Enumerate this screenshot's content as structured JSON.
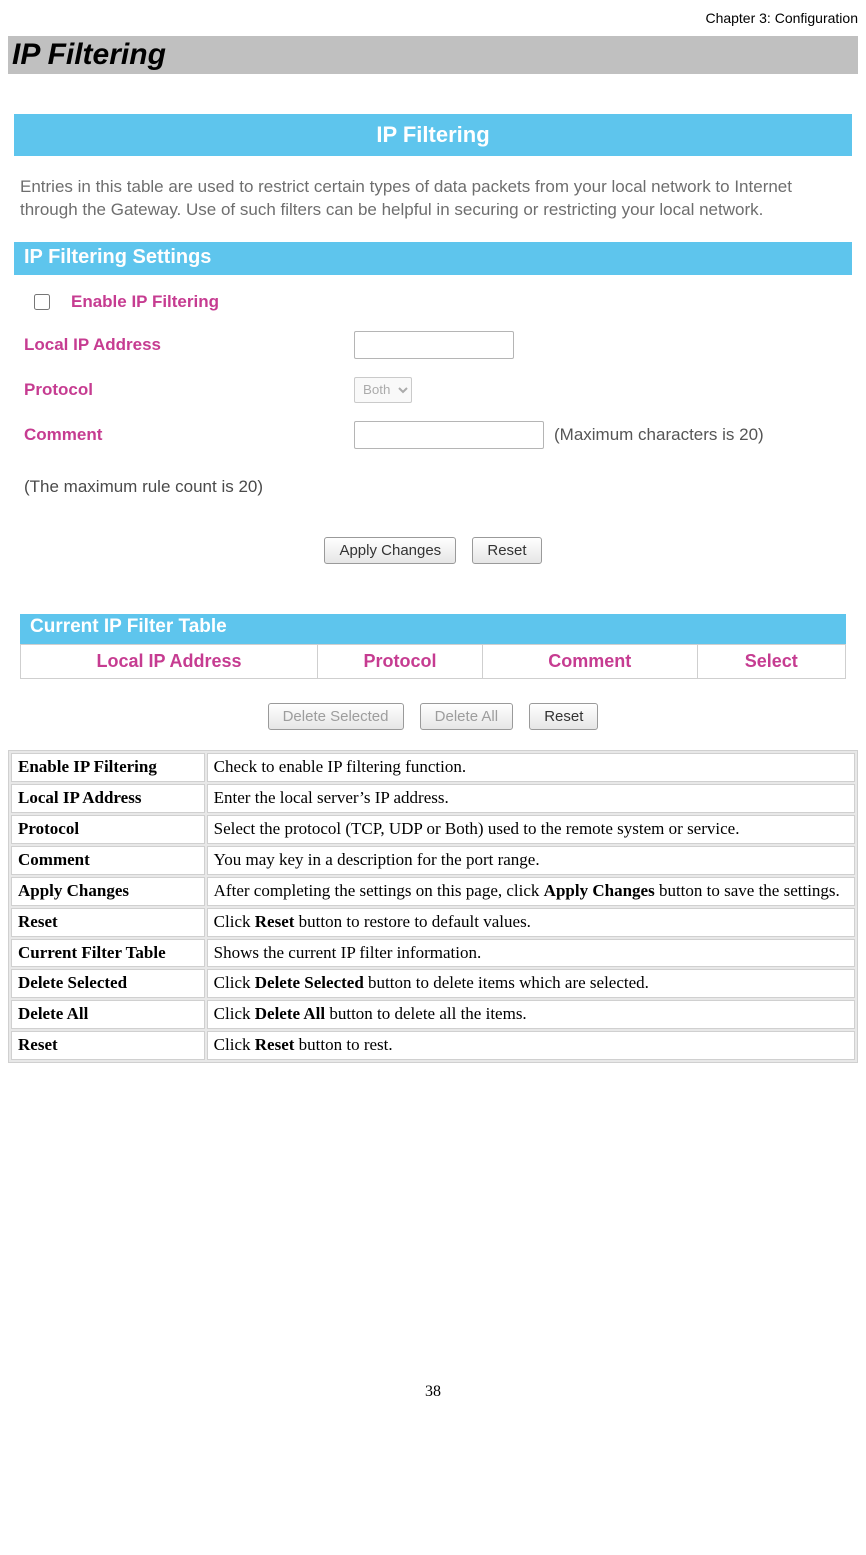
{
  "chapter_header": "Chapter 3: Configuration",
  "section_title": "IP Filtering",
  "router_ui": {
    "title": "IP Filtering",
    "description": "Entries in this table are used to restrict certain types of data packets from your local network to Internet through the Gateway. Use of such filters can be helpful in securing or restricting your local network.",
    "settings_header": "IP Filtering Settings",
    "enable_label": "Enable IP Filtering",
    "local_ip_label": "Local IP Address",
    "protocol_label": "Protocol",
    "protocol_value": "Both",
    "comment_label": "Comment",
    "comment_hint": "(Maximum characters is 20)",
    "max_rule_note": "(The maximum rule count is 20)",
    "apply_button": "Apply Changes",
    "reset_button": "Reset",
    "current_table_header": "Current IP Filter Table",
    "columns": {
      "c1": "Local IP Address",
      "c2": "Protocol",
      "c3": "Comment",
      "c4": "Select"
    },
    "delete_selected_button": "Delete Selected",
    "delete_all_button": "Delete All",
    "reset_button_2": "Reset",
    "colors": {
      "header_bg": "#5ec5ed",
      "header_text": "#ffffff",
      "accent_text": "#c63c91",
      "desc_text": "#6e6e6e"
    }
  },
  "definitions": [
    {
      "term": "Enable IP Filtering",
      "desc_html": "Check to enable IP filtering function."
    },
    {
      "term": "Local IP Address",
      "desc_html": "Enter the local server’s IP address."
    },
    {
      "term": "Protocol",
      "desc_html": "Select the protocol (TCP, UDP or Both) used to the remote system or service."
    },
    {
      "term": "Comment",
      "desc_html": "You may key in a description for the port range."
    },
    {
      "term": "Apply Changes",
      "desc_html": "After completing the settings on this page, click <b>Apply Changes</b> button to save the settings."
    },
    {
      "term": "Reset",
      "desc_html": "Click <b>Reset</b> button to restore to default values."
    },
    {
      "term": "Current Filter Table",
      "desc_html": "Shows the current IP filter information."
    },
    {
      "term": "Delete Selected",
      "desc_html": "Click <b>Delete Selected</b> button to delete items which are selected."
    },
    {
      "term": "Delete All",
      "desc_html": "Click <b>Delete All</b> button to delete all the items."
    },
    {
      "term": "Reset",
      "desc_html": "Click <b>Reset</b> button to rest."
    }
  ],
  "page_number": "38"
}
